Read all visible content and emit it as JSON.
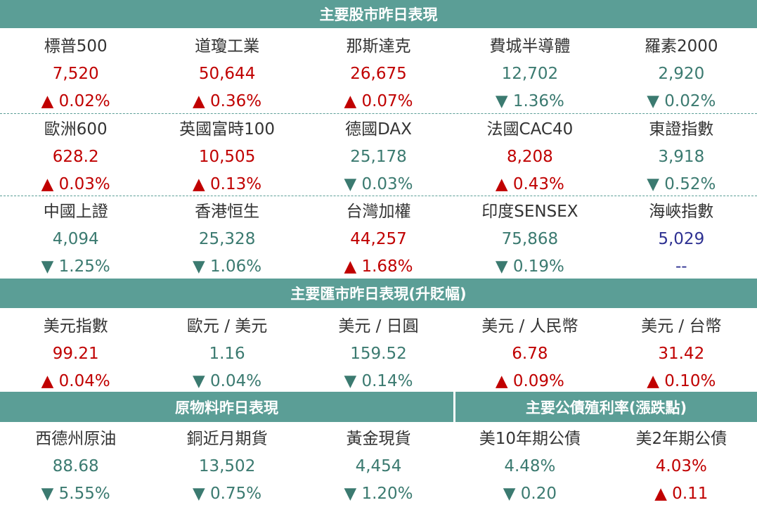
{
  "sections": [
    {
      "title": "主要股市昨日表現",
      "rows": [
        [
          {
            "name": "標普500",
            "value": "7,520",
            "change": "▲ 0.02%",
            "color": "#c00000"
          },
          {
            "name": "道瓊工業",
            "value": "50,644",
            "change": "▲ 0.36%",
            "color": "#c00000"
          },
          {
            "name": "那斯達克",
            "value": "26,675",
            "change": "▲ 0.07%",
            "color": "#c00000"
          },
          {
            "name": "費城半導體",
            "value": "12,702",
            "change": "▼ 1.36%",
            "color": "#3b7a70"
          },
          {
            "name": "羅素2000",
            "value": "2,920",
            "change": "▼ 0.02%",
            "color": "#3b7a70"
          }
        ],
        [
          {
            "name": "歐洲600",
            "value": "628.2",
            "change": "▲ 0.03%",
            "color": "#c00000"
          },
          {
            "name": "英國富時100",
            "value": "10,505",
            "change": "▲ 0.13%",
            "color": "#c00000"
          },
          {
            "name": "德國DAX",
            "value": "25,178",
            "change": "▼ 0.03%",
            "color": "#3b7a70"
          },
          {
            "name": "法國CAC40",
            "value": "8,208",
            "change": "▲ 0.43%",
            "color": "#c00000"
          },
          {
            "name": "東證指數",
            "value": "3,918",
            "change": "▼ 0.52%",
            "color": "#3b7a70"
          }
        ],
        [
          {
            "name": "中國上證",
            "value": "4,094",
            "change": "▼ 1.25%",
            "color": "#3b7a70"
          },
          {
            "name": "香港恒生",
            "value": "25,328",
            "change": "▼ 1.06%",
            "color": "#3b7a70"
          },
          {
            "name": "台灣加權",
            "value": "44,257",
            "change": "▲ 1.68%",
            "color": "#c00000"
          },
          {
            "name": "印度SENSEX",
            "value": "75,868",
            "change": "▼ 0.19%",
            "color": "#3b7a70"
          },
          {
            "name": "海峽指數",
            "value": "5,029",
            "change": "--",
            "color": "#2e3192"
          }
        ]
      ]
    },
    {
      "title": "主要匯市昨日表現(升貶幅)",
      "rows": [
        [
          {
            "name": "美元指數",
            "value": "99.21",
            "change": "▲ 0.04%",
            "color": "#c00000"
          },
          {
            "name": "歐元 / 美元",
            "value": "1.16",
            "change": "▼ 0.04%",
            "color": "#3b7a70"
          },
          {
            "name": "美元 / 日圓",
            "value": "159.52",
            "change": "▼ 0.14%",
            "color": "#3b7a70"
          },
          {
            "name": "美元 / 人民幣",
            "value": "6.78",
            "change": "▲ 0.09%",
            "color": "#c00000"
          },
          {
            "name": "美元 / 台幣",
            "value": "31.42",
            "change": "▲ 0.10%",
            "color": "#c00000"
          }
        ]
      ]
    },
    {
      "title": "原物料昨日表現",
      "rows": [
        [
          {
            "name": "西德州原油",
            "value": "88.68",
            "change": "▼ 5.55%",
            "color": "#3b7a70"
          },
          {
            "name": "銅近月期貨",
            "value": "13,502",
            "change": "▼ 0.75%",
            "color": "#3b7a70"
          },
          {
            "name": "黃金現貨",
            "value": "4,454",
            "change": "▼ 1.20%",
            "color": "#3b7a70"
          }
        ]
      ]
    },
    {
      "title": "主要公債殖利率(漲跌點)",
      "rows": [
        [
          {
            "name": "美10年期公債",
            "value": "4.48%",
            "change": "▼ 0.20",
            "color": "#3b7a70"
          },
          {
            "name": "美2年期公債",
            "value": "4.03%",
            "change": "▲ 0.11",
            "color": "#c00000"
          }
        ]
      ]
    }
  ]
}
